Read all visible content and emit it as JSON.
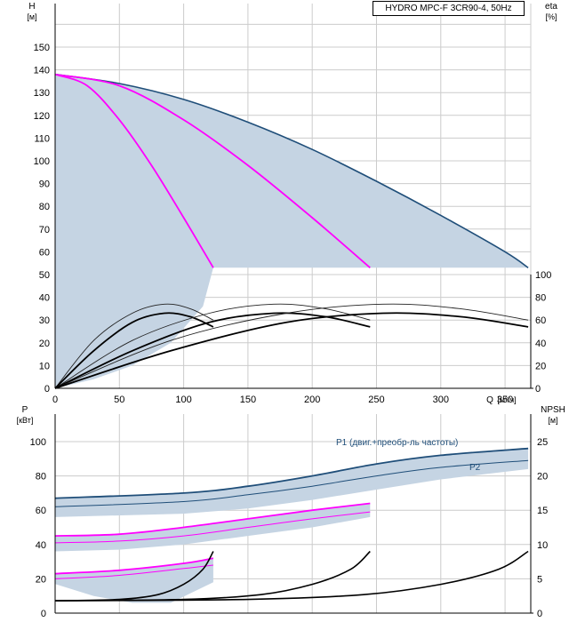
{
  "product_label": "HYDRO MPC-F 3CR90-4, 50Hz",
  "colors": {
    "envelope_fill": "#c5d4e3",
    "curve_blue": "#1f4e79",
    "curve_magenta": "#ff00ff",
    "curve_black": "#000000",
    "grid": "#cccccc"
  },
  "chart_data": [
    {
      "type": "line",
      "panel": "head",
      "ylabel": "H",
      "yunit": "[м]",
      "y2label": "eta",
      "y2unit": "[%]",
      "xlabel": "Q",
      "xunit": "[м³/ч]",
      "xlim": [
        0,
        370
      ],
      "ylim": [
        0,
        160
      ],
      "y2lim": [
        0,
        100
      ],
      "grid": true,
      "x_ticks": [
        0,
        50,
        100,
        150,
        200,
        250,
        300,
        350
      ],
      "y_ticks": [
        0,
        10,
        20,
        30,
        40,
        50,
        60,
        70,
        80,
        90,
        100,
        110,
        120,
        130,
        140,
        150
      ],
      "y2_ticks": [
        0,
        20,
        40,
        60,
        80,
        100
      ],
      "series": [
        {
          "role": "envelope",
          "x": [
            0,
            50,
            100,
            150,
            200,
            250,
            300,
            350,
            368
          ],
          "y": [
            138,
            134,
            127,
            117,
            105,
            91,
            76,
            60,
            53
          ]
        },
        {
          "role": "min-speed-left",
          "x": [
            30,
            60,
            90,
            115,
            123
          ],
          "y": [
            4,
            10,
            20,
            36,
            53
          ]
        },
        {
          "role": "one-pump",
          "x": [
            0,
            25,
            50,
            75,
            100,
            123
          ],
          "y": [
            138,
            133,
            118,
            98,
            75,
            53
          ]
        },
        {
          "role": "two-pumps",
          "x": [
            0,
            50,
            100,
            150,
            200,
            245
          ],
          "y": [
            138,
            133,
            118,
            98,
            75,
            53
          ]
        },
        {
          "role": "eta-1-upper",
          "x": [
            0,
            30,
            60,
            85,
            105,
            123
          ],
          "y": [
            0,
            42,
            66,
            74,
            70,
            60
          ]
        },
        {
          "role": "eta-1",
          "x": [
            0,
            30,
            60,
            85,
            105,
            123
          ],
          "y": [
            0,
            33,
            58,
            66,
            63,
            54
          ]
        },
        {
          "role": "eta-2-upper",
          "x": [
            0,
            60,
            120,
            170,
            210,
            245
          ],
          "y": [
            0,
            42,
            66,
            74,
            70,
            60
          ]
        },
        {
          "role": "eta-2",
          "x": [
            0,
            60,
            120,
            170,
            210,
            245
          ],
          "y": [
            0,
            33,
            58,
            66,
            63,
            54
          ]
        },
        {
          "role": "eta-3-upper",
          "x": [
            0,
            90,
            180,
            255,
            315,
            368
          ],
          "y": [
            0,
            42,
            66,
            74,
            70,
            60
          ]
        },
        {
          "role": "eta-3",
          "x": [
            0,
            90,
            180,
            255,
            315,
            368
          ],
          "y": [
            0,
            33,
            58,
            66,
            63,
            54
          ]
        }
      ]
    },
    {
      "type": "line",
      "panel": "power-npsh",
      "ylabel": "P",
      "yunit": "[кВт]",
      "y2label": "NPSH",
      "y2unit": "[м]",
      "xlim": [
        0,
        370
      ],
      "ylim": [
        0,
        110
      ],
      "y2lim": [
        0,
        27.5
      ],
      "grid": true,
      "y_ticks": [
        0,
        20,
        40,
        60,
        80,
        100
      ],
      "y2_ticks": [
        0,
        5,
        10,
        15,
        20,
        25
      ],
      "annotations": [
        "P1 (двиг.+преобр-ль частоты)",
        "P2"
      ],
      "series": [
        {
          "name": "P1 (двиг.+преобр-ль частоты)",
          "x": [
            0,
            100,
            150,
            200,
            250,
            300,
            368
          ],
          "y": [
            67,
            70,
            74,
            80,
            87,
            92,
            96
          ]
        },
        {
          "name": "P2",
          "x": [
            0,
            100,
            150,
            200,
            250,
            300,
            368
          ],
          "y": [
            62,
            65,
            69,
            74,
            80,
            85,
            89
          ]
        },
        {
          "role": "envelope-lower",
          "x": [
            0,
            100,
            150,
            200,
            250,
            300,
            368
          ],
          "y": [
            56,
            58,
            61,
            66,
            72,
            78,
            84
          ]
        },
        {
          "role": "p1-two-pumps",
          "x": [
            0,
            50,
            100,
            150,
            200,
            245
          ],
          "y": [
            45,
            46,
            50,
            55,
            60,
            64
          ]
        },
        {
          "role": "p2-two-pumps",
          "x": [
            0,
            50,
            100,
            150,
            200,
            245
          ],
          "y": [
            41,
            42,
            45,
            50,
            55,
            59
          ]
        },
        {
          "role": "p-two-pumps-lower",
          "x": [
            0,
            50,
            100,
            150,
            200,
            245
          ],
          "y": [
            36,
            37,
            40,
            45,
            50,
            56
          ]
        },
        {
          "role": "p1-one-pump",
          "x": [
            0,
            50,
            100,
            123
          ],
          "y": [
            23,
            25,
            29,
            32
          ]
        },
        {
          "role": "p2-one-pump",
          "x": [
            0,
            50,
            100,
            123
          ],
          "y": [
            20,
            22,
            26,
            28
          ]
        },
        {
          "role": "p-one-pump-lower",
          "x": [
            0,
            30,
            60,
            90,
            123
          ],
          "y": [
            17,
            10,
            6,
            6,
            18
          ]
        },
        {
          "role": "npsh-1",
          "x": [
            0,
            50,
            80,
            100,
            115,
            123
          ],
          "y": [
            1.8,
            2.0,
            2.7,
            4.2,
            6.4,
            9.0
          ]
        },
        {
          "role": "npsh-2",
          "x": [
            0,
            100,
            160,
            200,
            230,
            245
          ],
          "y": [
            1.8,
            2.0,
            2.7,
            4.2,
            6.4,
            9.0
          ]
        },
        {
          "role": "npsh-3",
          "x": [
            0,
            150,
            240,
            300,
            345,
            368
          ],
          "y": [
            1.8,
            2.0,
            2.7,
            4.2,
            6.4,
            9.0
          ]
        }
      ]
    }
  ]
}
